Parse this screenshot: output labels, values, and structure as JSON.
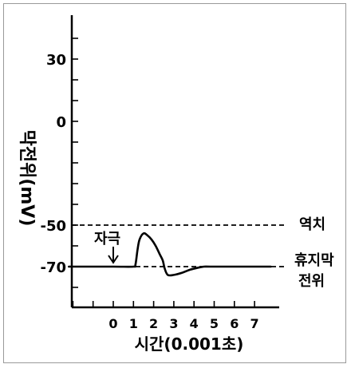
{
  "chart_data": {
    "type": "line",
    "xlabel": "시간(0.001초)",
    "ylabel": "막전위(mV)",
    "x_ticks": [
      0,
      1,
      2,
      3,
      4,
      5,
      6,
      7
    ],
    "y_tick_labels": [
      30,
      0,
      -50,
      -70
    ],
    "xlim": [
      -2.2,
      7.8
    ],
    "ylim": [
      -85,
      50
    ],
    "series": [
      {
        "x": [
          -2.2,
          0,
          1.0,
          1.1,
          1.2,
          1.3,
          1.5,
          1.7,
          1.9,
          2.1,
          2.3,
          2.45,
          2.55,
          2.7,
          3.0,
          3.4,
          3.8,
          4.2,
          4.5,
          4.8,
          6.0,
          7.8
        ],
        "y": [
          -70,
          -70,
          -70,
          -69,
          -62,
          -57,
          -54,
          -55,
          -57,
          -60,
          -64,
          -67,
          -71,
          -74,
          -74,
          -73,
          -71.5,
          -70.5,
          -70,
          -70,
          -70,
          -70
        ]
      }
    ],
    "reference_lines": [
      {
        "y": -50,
        "label": "역치",
        "style": "dashed"
      },
      {
        "y": -70,
        "label": "휴지막 전위",
        "style": "dashed"
      }
    ],
    "annotations": [
      {
        "text": "자극",
        "x": 0,
        "arrow": "down"
      }
    ]
  },
  "labels": {
    "threshold_label": "역치",
    "resting_label_line1": "휴지막",
    "resting_label_line2": "전위",
    "stimulus_label": "자극"
  }
}
